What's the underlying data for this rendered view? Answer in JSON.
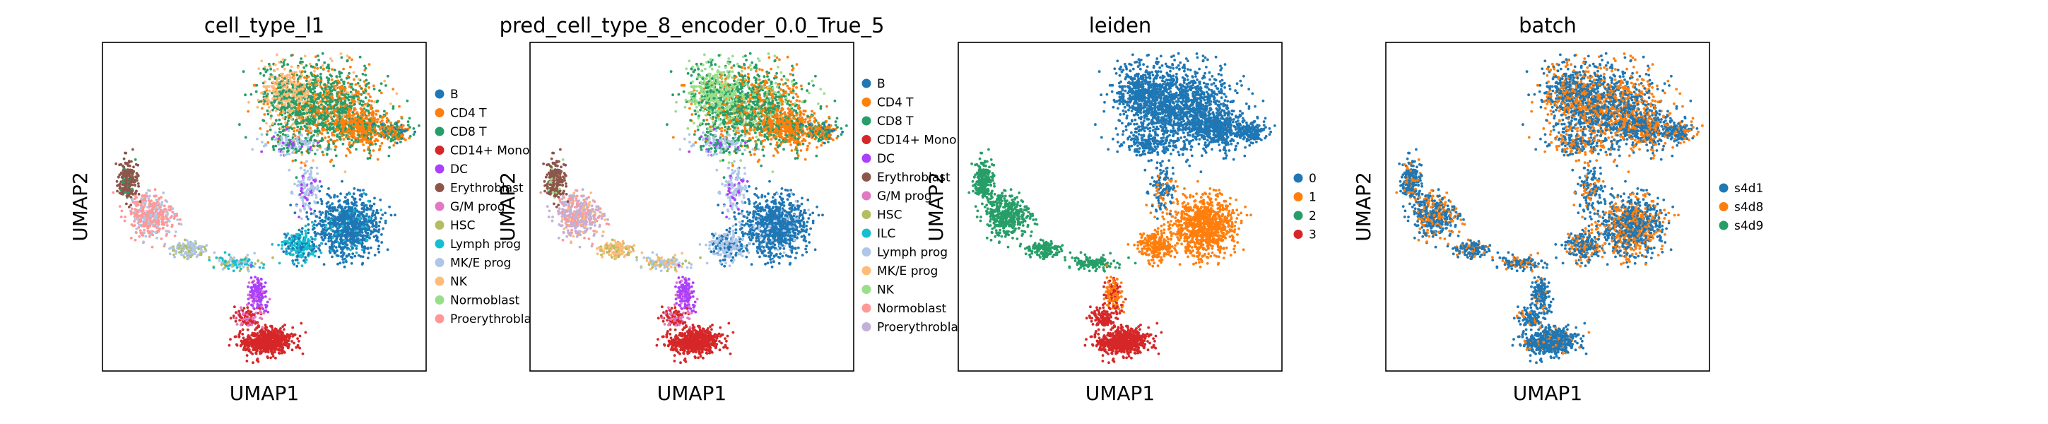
{
  "chart_data": [
    {
      "type": "scatter",
      "title": "cell_type_l1",
      "xlabel": "UMAP1",
      "ylabel": "UMAP2",
      "grid": false,
      "legend_placement": "right",
      "legend": [
        {
          "name": "B",
          "color": "#1f77b4"
        },
        {
          "name": "CD4 T",
          "color": "#ff7f0e"
        },
        {
          "name": "CD8 T",
          "color": "#279e68"
        },
        {
          "name": "CD14+ Mono",
          "color": "#d62728"
        },
        {
          "name": "DC",
          "color": "#aa40fc"
        },
        {
          "name": "Erythroblast",
          "color": "#8c564b"
        },
        {
          "name": "G/M prog",
          "color": "#e377c2"
        },
        {
          "name": "HSC",
          "color": "#b5bd61"
        },
        {
          "name": "Lymph prog",
          "color": "#17becf"
        },
        {
          "name": "MK/E prog",
          "color": "#aec7e8"
        },
        {
          "name": "NK",
          "color": "#ffbb78"
        },
        {
          "name": "Normoblast",
          "color": "#98df8a"
        },
        {
          "name": "Proerythroblast",
          "color": "#ff9896"
        }
      ]
    },
    {
      "type": "scatter",
      "title": "pred_cell_type_8_encoder_0.0_True_5",
      "xlabel": "UMAP1",
      "ylabel": "UMAP2",
      "grid": false,
      "legend_placement": "right",
      "legend": [
        {
          "name": "B",
          "color": "#1f77b4"
        },
        {
          "name": "CD4 T",
          "color": "#ff7f0e"
        },
        {
          "name": "CD8 T",
          "color": "#279e68"
        },
        {
          "name": "CD14+ Mono",
          "color": "#d62728"
        },
        {
          "name": "DC",
          "color": "#aa40fc"
        },
        {
          "name": "Erythroblast",
          "color": "#8c564b"
        },
        {
          "name": "G/M prog",
          "color": "#e377c2"
        },
        {
          "name": "HSC",
          "color": "#b5bd61"
        },
        {
          "name": "ILC",
          "color": "#17becf"
        },
        {
          "name": "Lymph prog",
          "color": "#aec7e8"
        },
        {
          "name": "MK/E prog",
          "color": "#ffbb78"
        },
        {
          "name": "NK",
          "color": "#98df8a"
        },
        {
          "name": "Normoblast",
          "color": "#ff9896"
        },
        {
          "name": "Proerythroblast",
          "color": "#c5b0d5"
        }
      ]
    },
    {
      "type": "scatter",
      "title": "leiden",
      "xlabel": "UMAP1",
      "ylabel": "UMAP2",
      "grid": false,
      "legend_placement": "right",
      "legend": [
        {
          "name": "0",
          "color": "#1f77b4"
        },
        {
          "name": "1",
          "color": "#ff7f0e"
        },
        {
          "name": "2",
          "color": "#279e68"
        },
        {
          "name": "3",
          "color": "#d62728"
        }
      ]
    },
    {
      "type": "scatter",
      "title": "batch",
      "xlabel": "UMAP1",
      "ylabel": "UMAP2",
      "grid": false,
      "legend_placement": "right",
      "legend": [
        {
          "name": "s4d1",
          "color": "#1f77b4"
        },
        {
          "name": "s4d8",
          "color": "#ff7f0e"
        },
        {
          "name": "s4d9",
          "color": "#279e68"
        }
      ]
    }
  ]
}
